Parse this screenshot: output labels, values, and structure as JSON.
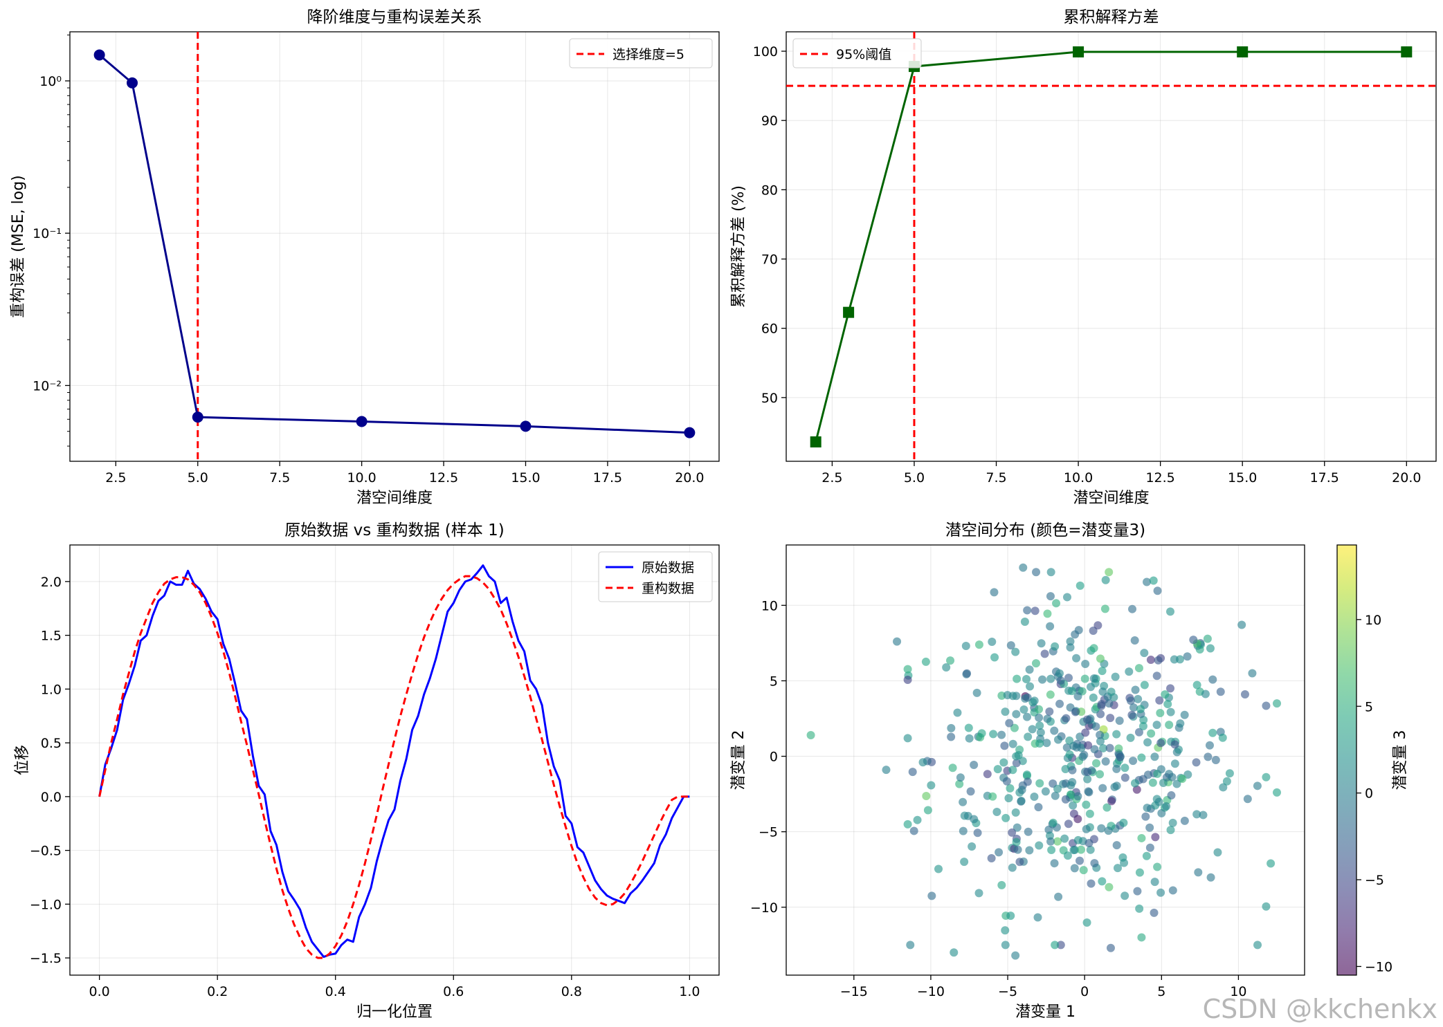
{
  "watermark": "CSDN @kkchenkx",
  "chart_data": [
    {
      "type": "line",
      "title": "降阶维度与重构误差关系",
      "xlabel": "潜空间维度",
      "ylabel": "重构误差 (MSE, log)",
      "yscale": "log",
      "xlim": [
        1.1,
        20.9
      ],
      "ylim": [
        0.00318,
        2.1
      ],
      "xticks": [
        2.5,
        5.0,
        7.5,
        10.0,
        12.5,
        15.0,
        17.5,
        20.0
      ],
      "xtick_labels": [
        "2.5",
        "5.0",
        "7.5",
        "10.0",
        "12.5",
        "15.0",
        "17.5",
        "20.0"
      ],
      "yticks": [
        1,
        0.1,
        0.01
      ],
      "ytick_labels": [
        "10⁰",
        "10⁻¹",
        "10⁻²"
      ],
      "x": [
        2,
        3,
        5,
        10,
        15,
        20
      ],
      "y": [
        1.48,
        0.97,
        0.0062,
        0.0058,
        0.0054,
        0.0049
      ],
      "color": "#00008b",
      "marker": "circle",
      "vline": {
        "x": 5,
        "label": "选择维度=5",
        "color": "#ff0000"
      },
      "legend": "top-right",
      "grid": true
    },
    {
      "type": "line",
      "title": "累积解释方差",
      "xlabel": "潜空间维度",
      "ylabel": "累积解释方差 (%)",
      "xlim": [
        1.1,
        20.9
      ],
      "ylim": [
        40.8,
        102.8
      ],
      "xticks": [
        2.5,
        5.0,
        7.5,
        10.0,
        12.5,
        15.0,
        17.5,
        20.0
      ],
      "xtick_labels": [
        "2.5",
        "5.0",
        "7.5",
        "10.0",
        "12.5",
        "15.0",
        "17.5",
        "20.0"
      ],
      "yticks": [
        50,
        60,
        70,
        80,
        90,
        100
      ],
      "ytick_labels": [
        "50",
        "60",
        "70",
        "80",
        "90",
        "100"
      ],
      "x": [
        2,
        3,
        5,
        10,
        15,
        20
      ],
      "y": [
        43.6,
        62.3,
        97.8,
        99.9,
        99.9,
        99.9
      ],
      "color": "#006400",
      "marker": "square",
      "hline": {
        "y": 95,
        "label": "95%阈值",
        "color": "#ff0000"
      },
      "vline": {
        "x": 5,
        "color": "#ff0000"
      },
      "legend": "top-left",
      "grid": true
    },
    {
      "type": "line",
      "title": "原始数据 vs 重构数据 (样本 1)",
      "xlabel": "归一化位置",
      "ylabel": "位移",
      "xlim": [
        -0.05,
        1.05
      ],
      "ylim": [
        -1.66,
        2.34
      ],
      "xticks": [
        0.0,
        0.2,
        0.4,
        0.6,
        0.8,
        1.0
      ],
      "xtick_labels": [
        "0.0",
        "0.2",
        "0.4",
        "0.6",
        "0.8",
        "1.0"
      ],
      "yticks": [
        -1.5,
        -1.0,
        -0.5,
        0.0,
        0.5,
        1.0,
        1.5,
        2.0
      ],
      "ytick_labels": [
        "−1.5",
        "−1.0",
        "−0.5",
        "0.0",
        "0.5",
        "1.0",
        "1.5",
        "2.0"
      ],
      "series": [
        {
          "name": "原始数据",
          "color": "#0000ff",
          "dash": "solid",
          "x": [
            0.0,
            0.01,
            0.02,
            0.03,
            0.04,
            0.05,
            0.06,
            0.07,
            0.08,
            0.09,
            0.1,
            0.11,
            0.12,
            0.13,
            0.14,
            0.15,
            0.16,
            0.17,
            0.18,
            0.19,
            0.2,
            0.21,
            0.22,
            0.23,
            0.24,
            0.25,
            0.26,
            0.27,
            0.28,
            0.29,
            0.3,
            0.31,
            0.32,
            0.33,
            0.34,
            0.35,
            0.36,
            0.37,
            0.38,
            0.39,
            0.4,
            0.41,
            0.42,
            0.43,
            0.44,
            0.45,
            0.46,
            0.47,
            0.48,
            0.49,
            0.5,
            0.51,
            0.52,
            0.53,
            0.54,
            0.55,
            0.56,
            0.57,
            0.58,
            0.59,
            0.6,
            0.61,
            0.62,
            0.63,
            0.64,
            0.65,
            0.66,
            0.67,
            0.68,
            0.69,
            0.7,
            0.71,
            0.72,
            0.73,
            0.74,
            0.75,
            0.76,
            0.77,
            0.78,
            0.79,
            0.8,
            0.81,
            0.82,
            0.83,
            0.84,
            0.85,
            0.86,
            0.87,
            0.88,
            0.89,
            0.9,
            0.91,
            0.92,
            0.93,
            0.94,
            0.95,
            0.96,
            0.97,
            0.98,
            0.99,
            1.0
          ],
          "y": [
            0.0,
            0.3,
            0.45,
            0.62,
            0.9,
            1.05,
            1.22,
            1.45,
            1.5,
            1.68,
            1.82,
            1.87,
            2.0,
            1.97,
            1.97,
            2.1,
            1.98,
            1.93,
            1.84,
            1.72,
            1.65,
            1.42,
            1.28,
            1.05,
            0.8,
            0.72,
            0.38,
            0.1,
            0.02,
            -0.32,
            -0.45,
            -0.7,
            -0.88,
            -0.96,
            -1.05,
            -1.22,
            -1.35,
            -1.42,
            -1.49,
            -1.47,
            -1.46,
            -1.38,
            -1.33,
            -1.35,
            -1.12,
            -1.0,
            -0.85,
            -0.6,
            -0.4,
            -0.22,
            -0.12,
            0.15,
            0.35,
            0.62,
            0.75,
            0.95,
            1.1,
            1.28,
            1.5,
            1.72,
            1.8,
            1.92,
            2.0,
            2.02,
            2.08,
            2.15,
            2.05,
            2.0,
            1.8,
            1.85,
            1.63,
            1.45,
            1.35,
            1.08,
            1.0,
            0.85,
            0.5,
            0.28,
            0.15,
            -0.18,
            -0.25,
            -0.47,
            -0.52,
            -0.65,
            -0.78,
            -0.86,
            -0.92,
            -0.95,
            -0.97,
            -0.99,
            -0.9,
            -0.85,
            -0.78,
            -0.7,
            -0.62,
            -0.45,
            -0.35,
            -0.2,
            -0.1,
            0.0,
            0.0
          ]
        },
        {
          "name": "重构数据",
          "color": "#ff0000",
          "dash": "dashed",
          "x": [
            0.0,
            0.01,
            0.02,
            0.03,
            0.04,
            0.05,
            0.06,
            0.07,
            0.08,
            0.09,
            0.1,
            0.11,
            0.12,
            0.13,
            0.14,
            0.15,
            0.16,
            0.17,
            0.18,
            0.19,
            0.2,
            0.21,
            0.22,
            0.23,
            0.24,
            0.25,
            0.26,
            0.27,
            0.28,
            0.29,
            0.3,
            0.31,
            0.32,
            0.33,
            0.34,
            0.35,
            0.36,
            0.37,
            0.38,
            0.39,
            0.4,
            0.41,
            0.42,
            0.43,
            0.44,
            0.45,
            0.46,
            0.47,
            0.48,
            0.49,
            0.5,
            0.51,
            0.52,
            0.53,
            0.54,
            0.55,
            0.56,
            0.57,
            0.58,
            0.59,
            0.6,
            0.61,
            0.62,
            0.63,
            0.64,
            0.65,
            0.66,
            0.67,
            0.68,
            0.69,
            0.7,
            0.71,
            0.72,
            0.73,
            0.74,
            0.75,
            0.76,
            0.77,
            0.78,
            0.79,
            0.8,
            0.81,
            0.82,
            0.83,
            0.84,
            0.85,
            0.86,
            0.87,
            0.88,
            0.89,
            0.9,
            0.91,
            0.92,
            0.93,
            0.94,
            0.95,
            0.96,
            0.97,
            0.98,
            0.99,
            1.0
          ],
          "y": [
            0.0,
            0.25,
            0.5,
            0.72,
            0.95,
            1.15,
            1.35,
            1.52,
            1.66,
            1.8,
            1.9,
            1.98,
            2.02,
            2.04,
            2.04,
            2.02,
            1.97,
            1.9,
            1.8,
            1.67,
            1.52,
            1.35,
            1.15,
            0.93,
            0.7,
            0.48,
            0.25,
            0.02,
            -0.22,
            -0.45,
            -0.67,
            -0.87,
            -1.04,
            -1.19,
            -1.31,
            -1.41,
            -1.47,
            -1.5,
            -1.5,
            -1.46,
            -1.39,
            -1.29,
            -1.16,
            -1.0,
            -0.82,
            -0.62,
            -0.4,
            -0.17,
            0.07,
            0.3,
            0.53,
            0.75,
            0.95,
            1.14,
            1.32,
            1.48,
            1.62,
            1.74,
            1.84,
            1.92,
            1.98,
            2.02,
            2.05,
            2.05,
            2.03,
            1.99,
            1.93,
            1.84,
            1.74,
            1.61,
            1.46,
            1.3,
            1.12,
            0.93,
            0.73,
            0.53,
            0.32,
            0.11,
            -0.09,
            -0.28,
            -0.46,
            -0.62,
            -0.75,
            -0.86,
            -0.94,
            -0.99,
            -1.01,
            -1.0,
            -0.96,
            -0.9,
            -0.81,
            -0.71,
            -0.6,
            -0.48,
            -0.36,
            -0.24,
            -0.13,
            -0.03,
            0.0,
            0.0,
            0.0
          ]
        }
      ],
      "legend": "top-right",
      "grid": true
    },
    {
      "type": "scatter",
      "title": "潜空间分布 (颜色=潜变量3)",
      "xlabel": "潜变量 1",
      "ylabel": "潜变量 2",
      "xlim": [
        -19.4,
        14.3
      ],
      "ylim": [
        -14.5,
        14.0
      ],
      "xticks": [
        -15,
        -10,
        -5,
        0,
        5,
        10
      ],
      "xtick_labels": [
        "−15",
        "−10",
        "−5",
        "0",
        "5",
        "10"
      ],
      "yticks": [
        -10,
        -5,
        0,
        5,
        10
      ],
      "ytick_labels": [
        "−10",
        "−5",
        "0",
        "5",
        "10"
      ],
      "colormap": "viridis",
      "alpha": 0.6,
      "point_count": 500,
      "distribution": {
        "mean": [
          0,
          0
        ],
        "std": [
          5,
          5
        ]
      },
      "outliers": [
        [
          -17.8,
          1.4
        ],
        [
          -12.2,
          7.6
        ],
        [
          -12.9,
          -0.9
        ],
        [
          12.5,
          3.5
        ],
        [
          12.5,
          -2.4
        ],
        [
          12.1,
          -7.1
        ],
        [
          10.9,
          5.5
        ],
        [
          -4.0,
          12.5
        ],
        [
          3.7,
          -12.0
        ],
        [
          -4.5,
          -13.2
        ],
        [
          -8.5,
          -13.0
        ],
        [
          1.7,
          -12.7
        ]
      ],
      "colorbar": {
        "label": "潜变量 3",
        "range": [
          -10.5,
          14.3
        ],
        "ticks": [
          -10,
          -5,
          0,
          5,
          10
        ],
        "tick_labels": [
          "−10",
          "−5",
          "0",
          "5",
          "10"
        ]
      },
      "grid": true
    }
  ]
}
